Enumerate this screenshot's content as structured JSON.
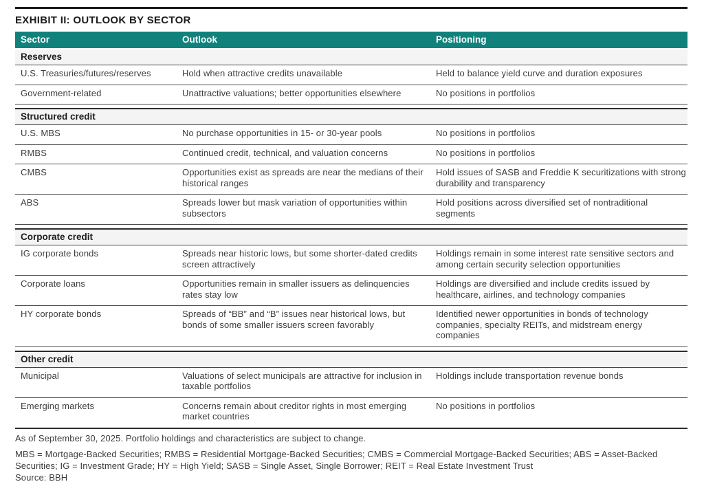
{
  "title": "EXHIBIT II: OUTLOOK BY SECTOR",
  "colors": {
    "header_teal": "#11827B",
    "section_row_bg": "#F4F4F4"
  },
  "table": {
    "columns": [
      "Sector",
      "Outlook",
      "Positioning"
    ],
    "sections": [
      {
        "label": "Reserves",
        "rows": [
          {
            "sector": "U.S. Treasuries/futures/reserves",
            "outlook": "Hold when attractive credits unavailable",
            "positioning": "Held to balance yield curve and duration exposures"
          },
          {
            "sector": "Government-related",
            "outlook": "Unattractive valuations; better opportunities elsewhere",
            "positioning": "No positions in portfolios"
          }
        ]
      },
      {
        "label": "Structured credit",
        "rows": [
          {
            "sector": "U.S. MBS",
            "outlook": "No purchase opportunities in 15- or 30-year pools",
            "positioning": "No positions in portfolios"
          },
          {
            "sector": "RMBS",
            "outlook": "Continued credit, technical, and valuation concerns",
            "positioning": "No positions in portfolios"
          },
          {
            "sector": "CMBS",
            "outlook": "Opportunities exist as spreads are near the medians of their historical ranges",
            "positioning": "Hold issues of SASB and Freddie K securitizations with strong durability and transparency"
          },
          {
            "sector": "ABS",
            "outlook": "Spreads lower but mask variation of opportunities within subsectors",
            "positioning": "Hold positions across diversified set of nontraditional segments"
          }
        ]
      },
      {
        "label": "Corporate credit",
        "rows": [
          {
            "sector": "IG corporate bonds",
            "outlook": "Spreads near historic lows, but some shorter-dated credits screen attractively",
            "positioning": "Holdings remain in some interest rate sensitive sectors and among certain security selection opportunities"
          },
          {
            "sector": "Corporate loans",
            "outlook": "Opportunities remain in smaller issuers as delinquencies rates stay low",
            "positioning": "Holdings are diversified and include credits issued by healthcare, airlines, and technology companies"
          },
          {
            "sector": "HY corporate bonds",
            "outlook": "Spreads of “BB” and “B” issues near historical lows, but bonds of some smaller issuers screen favorably",
            "positioning": "Identified newer opportunities in bonds of technology companies, specialty REITs, and midstream energy companies"
          }
        ]
      },
      {
        "label": "Other credit",
        "rows": [
          {
            "sector": "Municipal",
            "outlook": "Valuations of select municipals are attractive for inclusion in taxable portfolios",
            "positioning": "Holdings include transportation revenue bonds"
          },
          {
            "sector": "Emerging markets",
            "outlook": "Concerns remain about creditor rights in most emerging market countries",
            "positioning": "No positions in portfolios"
          }
        ]
      }
    ]
  },
  "footnotes": {
    "as_of": "As of September 30, 2025. Portfolio holdings and characteristics are subject to change.",
    "definitions": "MBS = Mortgage-Backed Securities; RMBS = Residential Mortgage-Backed Securities; CMBS = Commercial Mortgage-Backed Securities; ABS = Asset-Backed Securities; IG = Investment Grade; HY = High Yield; SASB = Single Asset, Single Borrower; REIT = Real Estate Investment Trust",
    "source": "Source: BBH"
  }
}
